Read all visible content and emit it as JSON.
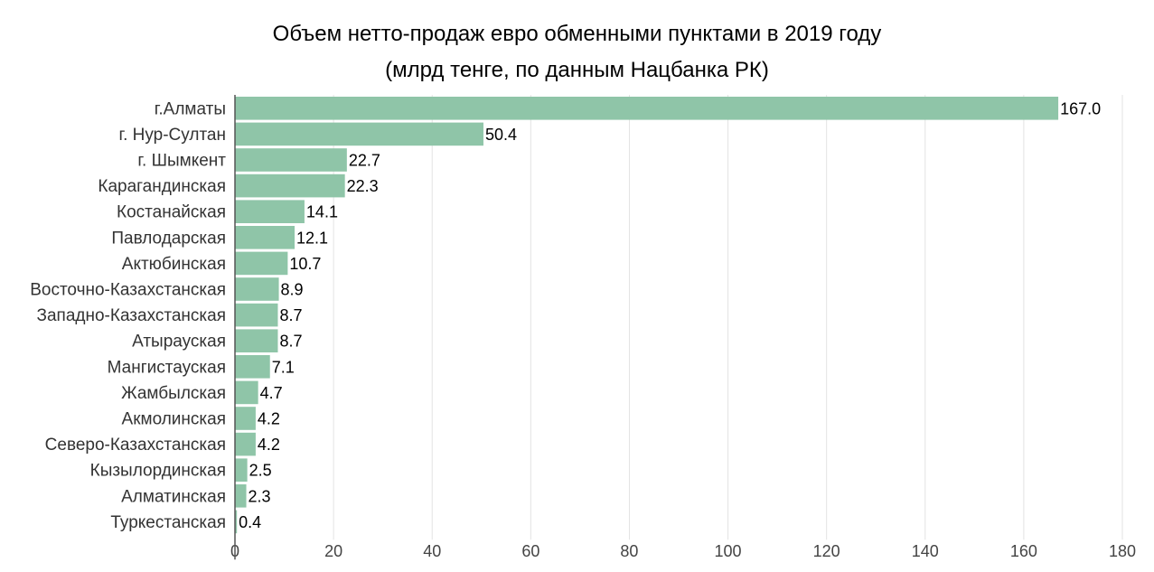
{
  "chart_data": {
    "type": "bar",
    "orientation": "horizontal",
    "title": "Объем нетто-продаж евро обменными пунктами в 2019 году",
    "subtitle": "(млрд тенге, по данным Нацбанка РК)",
    "xlabel": "",
    "ylabel": "",
    "xlim": [
      0,
      180
    ],
    "xticks": [
      0,
      20,
      40,
      60,
      80,
      100,
      120,
      140,
      160,
      180
    ],
    "grid": true,
    "categories": [
      "г.Алматы",
      "г. Нур-Султан",
      "г. Шымкент",
      "Карагандинская",
      "Костанайская",
      "Павлодарская",
      "Актюбинская",
      "Восточно-Казахстанская",
      "Западно-Казахстанская",
      "Атырауская",
      "Мангистауская",
      "Жамбылская",
      "Акмолинская",
      "Северо-Казахстанская",
      "Кызылординская",
      "Алматинская",
      "Туркестанская"
    ],
    "values": [
      167.0,
      50.4,
      22.7,
      22.3,
      14.1,
      12.1,
      10.7,
      8.9,
      8.7,
      8.7,
      7.1,
      4.7,
      4.2,
      4.2,
      2.5,
      2.3,
      0.4
    ],
    "value_labels": [
      "167.0",
      "50.4",
      "22.7",
      "22.3",
      "14.1",
      "12.1",
      "10.7",
      "8.9",
      "8.7",
      "8.7",
      "7.1",
      "4.7",
      "4.2",
      "4.2",
      "2.5",
      "2.3",
      "0.4"
    ],
    "bar_color": "#8fc5a8"
  }
}
